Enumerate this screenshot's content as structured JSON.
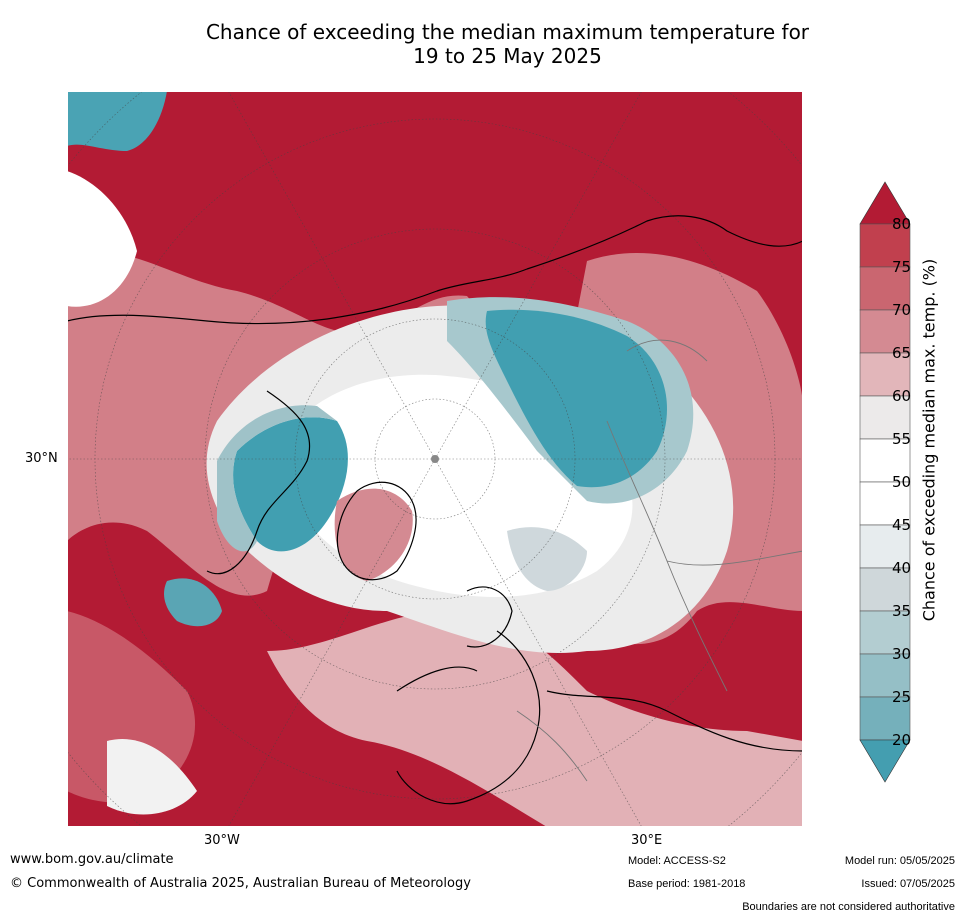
{
  "title": {
    "line1": "Chance of exceeding the median maximum temperature for",
    "line2": "19 to 25 May 2025"
  },
  "map": {
    "projection": "north-polar-stereographic",
    "lat_label": "30°N",
    "lon_labels": [
      "30°W",
      "30°E"
    ],
    "colors": {
      "very_high": "#b31b34",
      "high": "#c2505e",
      "mid_high": "#d88990",
      "low_high": "#e8bec1",
      "neutral": "#ececec",
      "white": "#ffffff",
      "low": "#cfd8dc",
      "mid_low": "#a7c6cb",
      "very_low": "#419fb1"
    }
  },
  "colorbar": {
    "title": "Chance of exceeding median max. temp. (%)",
    "ticks": [
      "80",
      "75",
      "70",
      "65",
      "60",
      "55",
      "50",
      "45",
      "40",
      "35",
      "30",
      "25",
      "20"
    ],
    "bands": [
      "#c1404e",
      "#ca6670",
      "#d48a92",
      "#e2b6ba",
      "#eceaea",
      "#ffffff",
      "#ffffff",
      "#e7ecee",
      "#cfd7da",
      "#b3cdd1",
      "#95bfc6",
      "#75b0bb",
      "#5aa5b4"
    ],
    "top_arrow_color": "#b31b34",
    "bottom_arrow_color": "#449eb0"
  },
  "footer": {
    "website": "www.bom.gov.au/climate",
    "copyright": "© Commonwealth of Australia 2025, Australian Bureau of Meteorology",
    "model": "Model: ACCESS-S2",
    "base_period": "Base period: 1981-2018",
    "model_run": "Model run: 05/05/2025",
    "issued": "Issued: 07/05/2025",
    "disclaimer": "Boundaries are not considered authoritative"
  }
}
